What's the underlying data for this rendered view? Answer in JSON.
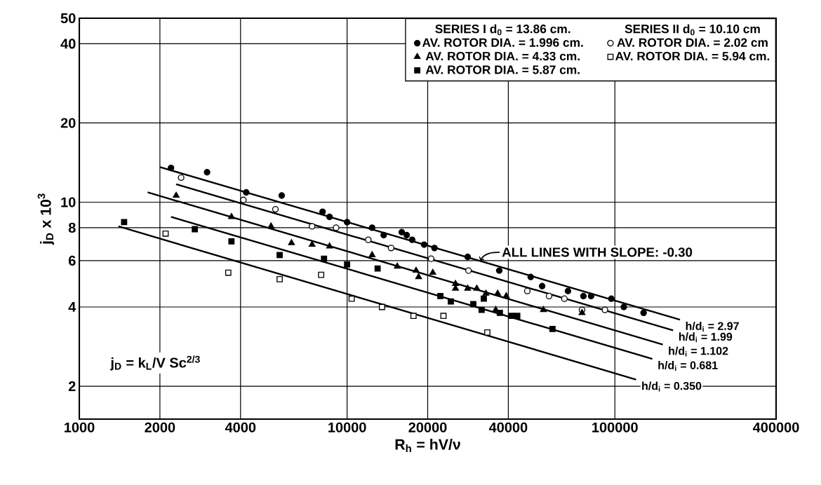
{
  "chart_data": {
    "type": "scatter",
    "xlabel": "R$_{h}$ = hV/ν",
    "ylabel": "j$_{D}$ x 10$^{3}$",
    "log": "xy",
    "grid": true,
    "legend": "top right",
    "xlim": [
      1000,
      400000
    ],
    "xticks": [
      1000,
      2000,
      4000,
      10000,
      20000,
      40000,
      100000,
      400000
    ],
    "ylim": [
      1.5,
      50
    ],
    "yticks": [
      2,
      4,
      6,
      8,
      10,
      20,
      40,
      50
    ],
    "annotations": [
      "SERIES I d$_{0}$ = 13.86 cm.",
      "SERIES II d$_{0}$ = 10.10 cm",
      {
        "text": "ALL LINES WITH SLOPE: -0.30",
        "x": 31400,
        "y": 6.0
      },
      "j$_{D}$ = k$_{L}$/V Sc$^{2/3}$"
    ],
    "series": [
      {
        "name": "AV. ROTOR DIA. = 1.996 cm.",
        "marker": "circle",
        "color": "#000000",
        "x": [
          2200,
          3000,
          4200,
          5700,
          8100,
          8600,
          10000,
          12400,
          13700,
          16000,
          16700,
          17500,
          19400,
          21200,
          28200,
          37000,
          48500,
          53500,
          66800,
          76300,
          81500,
          97000,
          108000,
          128000
        ],
        "values": [
          13.5,
          13.0,
          10.9,
          10.6,
          9.2,
          8.8,
          8.4,
          8.0,
          7.5,
          7.7,
          7.5,
          7.2,
          6.9,
          6.7,
          6.2,
          5.5,
          5.2,
          4.8,
          4.6,
          4.4,
          4.4,
          4.3,
          4.0,
          3.8
        ]
      },
      {
        "name": "AV. ROTOR DIA. = 2.02 cm",
        "marker": "circle",
        "color": "#ffffff",
        "x": [
          2400,
          4100,
          5400,
          7400,
          9100,
          12000,
          14600,
          20600,
          28400,
          47100,
          56800,
          64800,
          75400,
          91800
        ],
        "values": [
          12.4,
          10.2,
          9.4,
          8.1,
          8.0,
          7.2,
          6.7,
          6.1,
          5.5,
          4.6,
          4.4,
          4.3,
          3.9,
          3.9
        ]
      },
      {
        "name": "AV. ROTOR DIA. = 4.33 cm.",
        "marker": "triangle",
        "color": "#000000",
        "x": [
          2300,
          3700,
          5200,
          6200,
          7400,
          8600,
          12400,
          15400,
          18100,
          18500,
          20900,
          25400,
          25400,
          28200,
          30500,
          33000,
          36500,
          39300,
          35900,
          54100,
          75400
        ],
        "values": [
          10.6,
          8.8,
          8.1,
          7.0,
          6.9,
          6.8,
          6.3,
          5.7,
          5.5,
          5.2,
          5.4,
          4.9,
          4.7,
          4.7,
          4.7,
          4.5,
          4.5,
          4.4,
          3.9,
          3.9,
          3.8
        ]
      },
      {
        "name": "AV. ROTOR DIA. = 5.94 cm.",
        "marker": "square",
        "color": "#ffffff",
        "x": [
          2100,
          3600,
          5600,
          8000,
          10400,
          13500,
          17700,
          22900,
          33400
        ],
        "values": [
          7.6,
          5.4,
          5.1,
          5.3,
          4.3,
          4.0,
          3.7,
          3.7,
          3.2
        ]
      },
      {
        "name": "AV. ROTOR DIA. = 5.87 cm.",
        "marker": "square",
        "color": "#000000",
        "x": [
          1470,
          2700,
          3700,
          5600,
          8200,
          10000,
          13000,
          22300,
          24400,
          29600,
          31800,
          32400,
          37200,
          41200,
          43200,
          58500
        ],
        "values": [
          8.4,
          7.9,
          7.1,
          6.3,
          6.1,
          5.8,
          5.6,
          4.4,
          4.2,
          4.1,
          3.9,
          4.3,
          3.8,
          3.7,
          3.7,
          3.3
        ]
      },
      {
        "name": "h/d$_{i}$ = 2.97",
        "type": "line",
        "color": "#000000",
        "x": [
          2000,
          175000
        ],
        "values": [
          13.6,
          3.58
        ]
      },
      {
        "name": "h/d$_{i}$ = 1.99",
        "type": "line",
        "color": "#000000",
        "x": [
          2300,
          165000
        ],
        "values": [
          11.7,
          3.26
        ]
      },
      {
        "name": "h/d$_{i}$ = 1.102",
        "type": "line",
        "color": "#000000",
        "x": [
          1800,
          151000
        ],
        "values": [
          10.9,
          2.88
        ]
      },
      {
        "name": "h/d$_{i}$ = 0.681",
        "type": "line",
        "color": "#000000",
        "x": [
          2200,
          138000
        ],
        "values": [
          8.8,
          2.54
        ]
      },
      {
        "name": "h/d$_{i}$ = 0.350",
        "type": "line",
        "color": "#000000",
        "x": [
          1400,
          120000
        ],
        "values": [
          8.1,
          2.12
        ]
      }
    ]
  }
}
